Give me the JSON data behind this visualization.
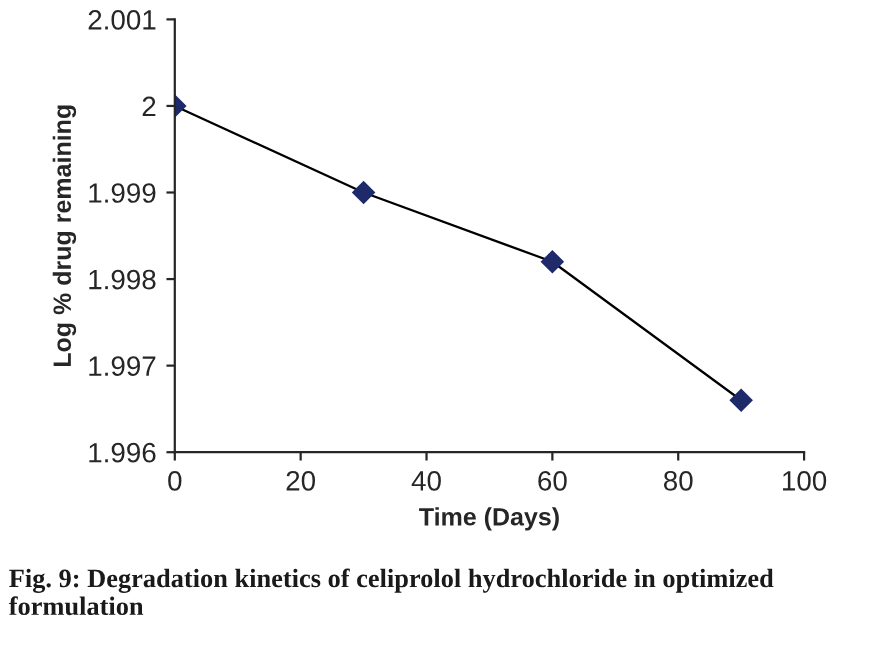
{
  "chart_data": {
    "type": "line",
    "xlabel": "Time (Days)",
    "ylabel": "Log % drug remaining",
    "x": [
      0,
      30,
      60,
      90
    ],
    "series": [
      {
        "color": "#1f2a6b",
        "values": [
          2,
          1.999,
          1.9982,
          1.9966
        ]
      }
    ],
    "xlim": [
      0,
      100
    ],
    "xticks": [
      0,
      20,
      40,
      60,
      80,
      100
    ],
    "ylim": [
      1.996,
      2.001
    ],
    "yticks": [
      1.996,
      1.997,
      1.998,
      1.999,
      2,
      2.001
    ],
    "marker": "diamond",
    "line_style": "solid",
    "grid": false,
    "legend": false,
    "annotations": [
      "Fig. 9: Degradation kinetics of celiprolol hydrochloride in optimized formulation"
    ]
  }
}
